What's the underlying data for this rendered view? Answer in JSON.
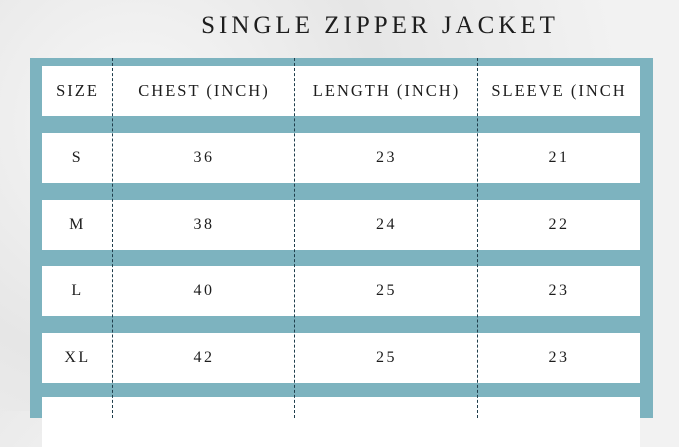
{
  "title": "SINGLE ZIPPER JACKET",
  "headers": [
    "SIZE",
    "CHEST (INCH)",
    "LENGTH (INCH)",
    "SLEEVE (INCH"
  ],
  "rows": [
    [
      "S",
      "36",
      "23",
      "21"
    ],
    [
      "M",
      "38",
      "24",
      "22"
    ],
    [
      "L",
      "40",
      "25",
      "23"
    ],
    [
      "XL",
      "42",
      "25",
      "23"
    ]
  ],
  "colors": {
    "panel": "#7db3bf",
    "row": "#ffffff",
    "text": "#1d1d1d"
  }
}
